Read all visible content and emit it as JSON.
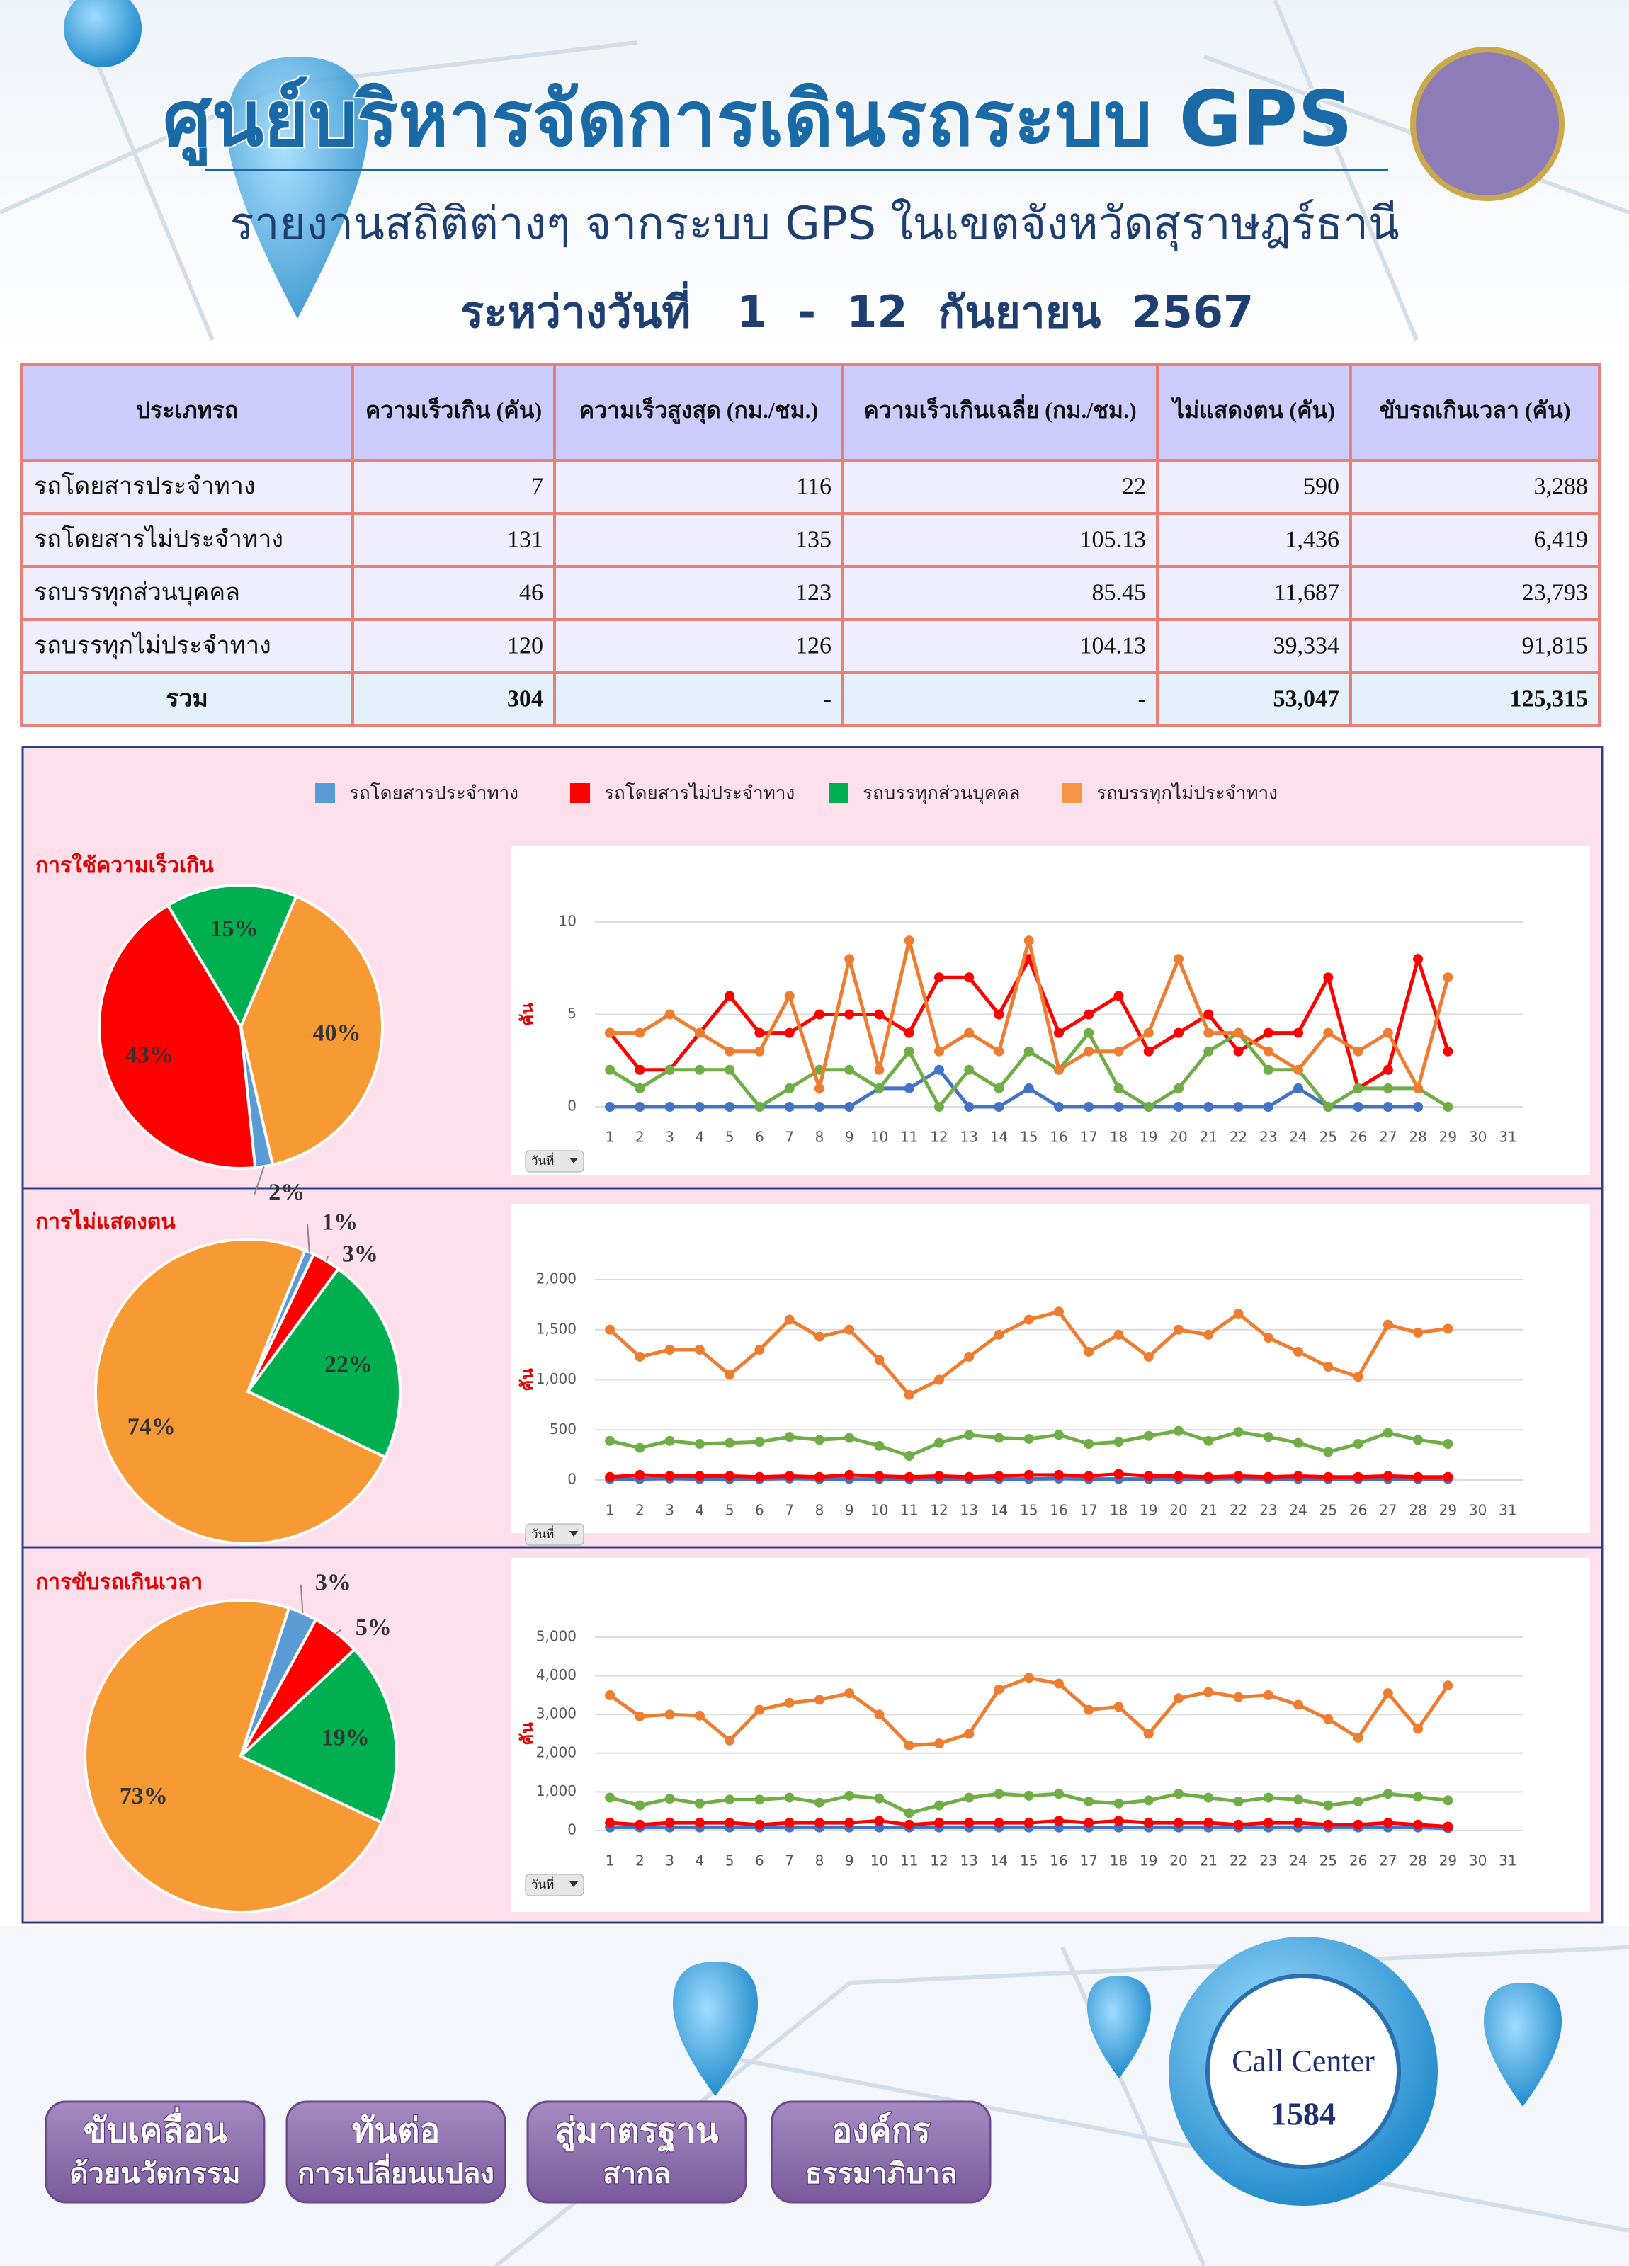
{
  "header": {
    "title": "ศูนย์บริหารจัดการเดินรถระบบ GPS",
    "subtitle": "รายงานสถิติต่างๆ จากระบบ GPS ในเขตจังหวัดสุราษฎร์ธานี",
    "period": "ระหว่างวันที่   1  -  12  กันยายน  2567"
  },
  "table": {
    "headers": [
      "ประเภทรถ",
      "ความเร็วเกิน (คัน)",
      "ความเร็วสูงสุด (กม./ชม.)",
      "ความเร็วเกินเฉลี่ย (กม./ชม.)",
      "ไม่แสดงตน (คัน)",
      "ขับรถเกินเวลา (คัน)"
    ],
    "rows": [
      [
        "รถโดยสารประจำทาง",
        "7",
        "116",
        "22",
        "590",
        "3,288"
      ],
      [
        "รถโดยสารไม่ประจำทาง",
        "131",
        "135",
        "105.13",
        "1,436",
        "6,419"
      ],
      [
        "รถบรรทุกส่วนบุคคล",
        "46",
        "123",
        "85.45",
        "11,687",
        "23,793"
      ],
      [
        "รถบรรทุกไม่ประจำทาง",
        "120",
        "126",
        "104.13",
        "39,334",
        "91,815"
      ],
      [
        "รวม",
        "304",
        "-",
        "-",
        "53,047",
        "125,315"
      ]
    ]
  },
  "legend": [
    {
      "name": "รถโดยสารประจำทาง",
      "color": "#5b9bd5"
    },
    {
      "name": "รถโดยสารไม่ประจำทาง",
      "color": "#ff0000"
    },
    {
      "name": "รถบรรทุกส่วนบุคคล",
      "color": "#00b050"
    },
    {
      "name": "รถบรรทุกไม่ประจำทาง",
      "color": "#f79646"
    }
  ],
  "chart_data": [
    {
      "type": "pie",
      "title": "การใช้ความเร็วเกิน",
      "values": [
        2,
        43,
        15,
        40
      ],
      "value_labels": [
        "2%",
        "43%",
        "15%",
        "40%"
      ],
      "colors": [
        "#5b9bd5",
        "#ff0000",
        "#00b050",
        "#f79a34"
      ]
    },
    {
      "type": "line",
      "y_label": "คัน",
      "filter_label": "วันที่",
      "x": [
        1,
        2,
        3,
        4,
        5,
        6,
        7,
        8,
        9,
        10,
        11,
        12,
        13,
        14,
        15,
        16,
        17,
        18,
        19,
        20,
        21,
        22,
        23,
        24,
        25,
        26,
        27,
        28,
        29
      ],
      "xlim": [
        0.5,
        31.5
      ],
      "xticks": [
        1,
        2,
        3,
        4,
        5,
        6,
        7,
        8,
        9,
        10,
        11,
        12,
        13,
        14,
        15,
        16,
        17,
        18,
        19,
        20,
        21,
        22,
        23,
        24,
        25,
        26,
        27,
        28,
        29,
        30,
        31
      ],
      "ylim": [
        0,
        10
      ],
      "yticks": [
        0,
        5,
        10
      ],
      "grid": true,
      "series": [
        {
          "color": "#4472c4",
          "values": [
            0,
            0,
            0,
            0,
            0,
            0,
            0,
            0,
            0,
            1,
            1,
            2,
            0,
            0,
            1,
            0,
            0,
            0,
            0,
            0,
            0,
            0,
            0,
            1,
            0,
            0,
            0,
            0,
            null
          ]
        },
        {
          "color": "#ff0000",
          "values": [
            4,
            2,
            2,
            4,
            6,
            4,
            4,
            5,
            5,
            5,
            4,
            7,
            7,
            5,
            8,
            4,
            5,
            6,
            3,
            4,
            5,
            3,
            4,
            4,
            7,
            1,
            2,
            8,
            3
          ]
        },
        {
          "color": "#70ad47",
          "values": [
            2,
            1,
            2,
            2,
            2,
            0,
            1,
            2,
            2,
            1,
            3,
            0,
            2,
            1,
            3,
            2,
            4,
            1,
            0,
            1,
            3,
            4,
            2,
            2,
            0,
            1,
            1,
            1,
            0
          ]
        },
        {
          "color": "#ed7d31",
          "values": [
            4,
            4,
            5,
            4,
            3,
            3,
            6,
            1,
            8,
            2,
            9,
            3,
            4,
            3,
            9,
            2,
            3,
            3,
            4,
            8,
            4,
            4,
            3,
            2,
            4,
            3,
            4,
            1,
            7
          ]
        }
      ]
    },
    {
      "type": "pie",
      "title": "การไม่แสดงตน",
      "values": [
        1,
        3,
        22,
        74
      ],
      "value_labels": [
        "1%",
        "3%",
        "22%",
        "74%"
      ],
      "colors": [
        "#5b9bd5",
        "#ff0000",
        "#00b050",
        "#f79a34"
      ]
    },
    {
      "type": "line",
      "y_label": "คัน",
      "filter_label": "วันที่",
      "x": [
        1,
        2,
        3,
        4,
        5,
        6,
        7,
        8,
        9,
        10,
        11,
        12,
        13,
        14,
        15,
        16,
        17,
        18,
        19,
        20,
        21,
        22,
        23,
        24,
        25,
        26,
        27,
        28,
        29
      ],
      "xlim": [
        0.5,
        31.5
      ],
      "xticks": [
        1,
        2,
        3,
        4,
        5,
        6,
        7,
        8,
        9,
        10,
        11,
        12,
        13,
        14,
        15,
        16,
        17,
        18,
        19,
        20,
        21,
        22,
        23,
        24,
        25,
        26,
        27,
        28,
        29,
        30,
        31
      ],
      "ylim": [
        0,
        2000
      ],
      "yticks": [
        0,
        500,
        {
          "value": 1000,
          "label": "1,000"
        },
        {
          "value": 1500,
          "label": "1,500"
        },
        {
          "value": 2000,
          "label": "2,000"
        }
      ],
      "grid": true,
      "series": [
        {
          "color": "#4472c4",
          "values": [
            10,
            10,
            15,
            10,
            10,
            10,
            15,
            10,
            10,
            10,
            10,
            10,
            10,
            10,
            10,
            15,
            10,
            10,
            10,
            10,
            10,
            15,
            10,
            10,
            10,
            10,
            10,
            10,
            10
          ]
        },
        {
          "color": "#ff0000",
          "values": [
            30,
            50,
            40,
            40,
            40,
            30,
            40,
            30,
            50,
            40,
            30,
            40,
            30,
            40,
            50,
            50,
            40,
            60,
            40,
            40,
            30,
            40,
            30,
            40,
            30,
            30,
            40,
            30,
            30
          ]
        },
        {
          "color": "#70ad47",
          "values": [
            390,
            320,
            390,
            360,
            370,
            380,
            430,
            400,
            420,
            340,
            240,
            370,
            450,
            420,
            410,
            450,
            360,
            380,
            440,
            490,
            390,
            480,
            430,
            370,
            280,
            360,
            470,
            400,
            360
          ]
        },
        {
          "color": "#ed7d31",
          "values": [
            1500,
            1230,
            1300,
            1300,
            1050,
            1300,
            1600,
            1430,
            1500,
            1200,
            850,
            1000,
            1230,
            1450,
            1600,
            1680,
            1280,
            1450,
            1230,
            1500,
            1450,
            1660,
            1420,
            1280,
            1130,
            1030,
            1550,
            1470,
            1510
          ]
        }
      ]
    },
    {
      "type": "pie",
      "title": "การขับรถเกินเวลา",
      "values": [
        3,
        5,
        19,
        73
      ],
      "value_labels": [
        "3%",
        "5%",
        "19%",
        "73%"
      ],
      "colors": [
        "#5b9bd5",
        "#ff0000",
        "#00b050",
        "#f79a34"
      ]
    },
    {
      "type": "line",
      "y_label": "คัน",
      "filter_label": "วันที่",
      "x": [
        1,
        2,
        3,
        4,
        5,
        6,
        7,
        8,
        9,
        10,
        11,
        12,
        13,
        14,
        15,
        16,
        17,
        18,
        19,
        20,
        21,
        22,
        23,
        24,
        25,
        26,
        27,
        28,
        29
      ],
      "xlim": [
        0.5,
        31.5
      ],
      "xticks": [
        1,
        2,
        3,
        4,
        5,
        6,
        7,
        8,
        9,
        10,
        11,
        12,
        13,
        14,
        15,
        16,
        17,
        18,
        19,
        20,
        21,
        22,
        23,
        24,
        25,
        26,
        27,
        28,
        29,
        30,
        31
      ],
      "ylim": [
        0,
        5000
      ],
      "yticks": [
        0,
        {
          "value": 1000,
          "label": "1,000"
        },
        {
          "value": 2000,
          "label": "2,000"
        },
        {
          "value": 3000,
          "label": "3,000"
        },
        {
          "value": 4000,
          "label": "4,000"
        },
        {
          "value": 5000,
          "label": "5,000"
        }
      ],
      "grid": true,
      "series": [
        {
          "color": "#4472c4",
          "values": [
            80,
            80,
            80,
            80,
            80,
            80,
            80,
            80,
            80,
            80,
            80,
            80,
            80,
            80,
            80,
            80,
            80,
            80,
            80,
            80,
            80,
            80,
            80,
            80,
            80,
            80,
            80,
            80,
            60
          ]
        },
        {
          "color": "#ff0000",
          "values": [
            200,
            150,
            200,
            200,
            200,
            150,
            200,
            200,
            200,
            250,
            150,
            200,
            200,
            200,
            200,
            250,
            200,
            250,
            200,
            200,
            200,
            150,
            200,
            200,
            150,
            150,
            200,
            150,
            100
          ]
        },
        {
          "color": "#70ad47",
          "values": [
            850,
            650,
            820,
            700,
            800,
            800,
            850,
            720,
            900,
            830,
            450,
            650,
            850,
            950,
            900,
            950,
            750,
            700,
            780,
            950,
            850,
            750,
            850,
            800,
            650,
            750,
            950,
            870,
            780
          ]
        },
        {
          "color": "#ed7d31",
          "values": [
            3500,
            2950,
            3000,
            2970,
            2330,
            3120,
            3300,
            3380,
            3550,
            3000,
            2200,
            2250,
            2500,
            3650,
            3950,
            3800,
            3120,
            3200,
            2500,
            3420,
            3580,
            3450,
            3500,
            3250,
            2880,
            2400,
            3550,
            2630,
            3750
          ]
        }
      ]
    }
  ],
  "footer": {
    "buttons": [
      {
        "line1": "ขับเคลื่อน",
        "line2": "ด้วยนวัตกรรม"
      },
      {
        "line1": "ทันต่อ",
        "line2": "การเปลี่ยนแปลง"
      },
      {
        "line1": "สู่มาตรฐาน",
        "line2": "สากล"
      },
      {
        "line1": "องค์กร",
        "line2": "ธรรมาภิบาล"
      }
    ],
    "call_center": {
      "label": "Call Center",
      "number": "1584"
    }
  }
}
